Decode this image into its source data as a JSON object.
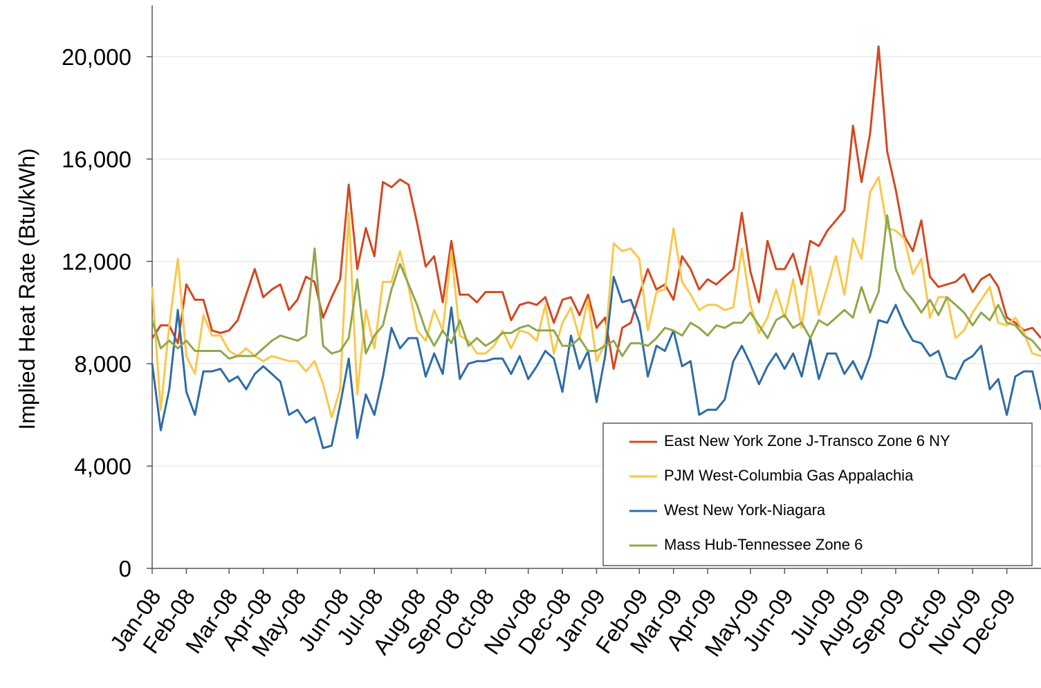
{
  "chart_data": {
    "type": "line",
    "y_label": "Implied Heat Rate (Btu/kWh)",
    "categories": [
      "Jan-08",
      null,
      null,
      null,
      "Feb-08",
      null,
      null,
      null,
      null,
      "Mar-08",
      null,
      null,
      null,
      "Apr-08",
      null,
      null,
      null,
      "May-08",
      null,
      null,
      null,
      null,
      "Jun-08",
      null,
      null,
      null,
      "Jul-08",
      null,
      null,
      null,
      null,
      "Aug-08",
      null,
      null,
      null,
      "Sep-08",
      null,
      null,
      null,
      "Oct-08",
      null,
      null,
      null,
      null,
      "Nov-08",
      null,
      null,
      null,
      "Dec-08",
      null,
      null,
      null,
      "Jan-09",
      null,
      null,
      null,
      null,
      "Feb-09",
      null,
      null,
      null,
      "Mar-09",
      null,
      null,
      null,
      "Apr-09",
      null,
      null,
      null,
      null,
      "May-09",
      null,
      null,
      null,
      "Jun-09",
      null,
      null,
      null,
      null,
      "Jul-09",
      null,
      null,
      null,
      "Aug-09",
      null,
      null,
      null,
      "Sep-09",
      null,
      null,
      null,
      null,
      "Oct-09",
      null,
      null,
      null,
      "Nov-09",
      null,
      null,
      null,
      "Dec-09",
      null,
      null,
      null,
      null
    ],
    "series": [
      {
        "name": "East New York Zone J-Transco Zone 6 NY",
        "color": "#d2481f",
        "values": [
          9000,
          9500,
          9500,
          8800,
          11100,
          10500,
          10500,
          9300,
          9200,
          9300,
          9700,
          10700,
          11700,
          10600,
          10900,
          11100,
          10100,
          10500,
          11400,
          11200,
          9800,
          10600,
          11300,
          15000,
          11700,
          13300,
          12200,
          15100,
          14900,
          15200,
          15000,
          13500,
          11800,
          12200,
          10400,
          12800,
          10700,
          10700,
          10400,
          10800,
          10800,
          10800,
          9700,
          10300,
          10400,
          10300,
          10600,
          9600,
          10500,
          10600,
          9900,
          10700,
          9400,
          9800,
          7800,
          9400,
          9600,
          10700,
          11700,
          10900,
          11100,
          10500,
          12200,
          11700,
          10900,
          11300,
          11100,
          11400,
          11700,
          13900,
          11600,
          10400,
          12800,
          11700,
          11700,
          12300,
          11100,
          12800,
          12600,
          13200,
          13600,
          14000,
          17300,
          15100,
          17000,
          20400,
          16300,
          14800,
          13000,
          12400,
          13600,
          11400,
          11000,
          11100,
          11200,
          11500,
          10800,
          11300,
          11500,
          11000,
          9800,
          9600,
          9300,
          9400,
          9000
        ]
      },
      {
        "name": "PJM West-Columbia Gas Appalachia",
        "color": "#f9c74a",
        "values": [
          11000,
          6200,
          9500,
          12100,
          8300,
          7600,
          9900,
          9100,
          9100,
          8500,
          8300,
          8600,
          8300,
          8100,
          8300,
          8200,
          8100,
          8100,
          7700,
          8100,
          7200,
          5900,
          7000,
          13900,
          6800,
          10100,
          8600,
          11200,
          11200,
          12400,
          11000,
          9300,
          8900,
          10100,
          9300,
          12400,
          9100,
          8900,
          8400,
          8400,
          8700,
          9300,
          8600,
          9300,
          9200,
          8900,
          10300,
          8400,
          9600,
          10200,
          9000,
          10500,
          8100,
          8800,
          12700,
          12400,
          12500,
          12100,
          9300,
          10800,
          10900,
          13300,
          11200,
          10700,
          10100,
          10300,
          10300,
          10100,
          10200,
          12500,
          10300,
          9200,
          9800,
          10900,
          9800,
          11300,
          9400,
          11800,
          9900,
          11000,
          12200,
          10700,
          12900,
          12100,
          14700,
          15300,
          13300,
          13200,
          12900,
          11500,
          12100,
          9800,
          10600,
          10600,
          9000,
          9300,
          10000,
          10500,
          11000,
          9600,
          9500,
          9800,
          9200,
          8400,
          8300
        ]
      },
      {
        "name": "West New York-Niagara",
        "color": "#2e6ca4",
        "values": [
          8000,
          5400,
          7000,
          10100,
          6900,
          6000,
          7700,
          7700,
          7800,
          7300,
          7500,
          7000,
          7600,
          7900,
          7600,
          7300,
          6000,
          6200,
          5700,
          5900,
          4700,
          4800,
          6400,
          8200,
          5100,
          6800,
          6000,
          7500,
          9400,
          8600,
          9000,
          9000,
          7500,
          8400,
          7600,
          10200,
          7400,
          8000,
          8100,
          8100,
          8200,
          8200,
          7600,
          8300,
          7400,
          7900,
          8500,
          8200,
          6900,
          9100,
          7800,
          8500,
          6500,
          8300,
          11400,
          10400,
          10500,
          9600,
          7500,
          8700,
          8500,
          9300,
          7900,
          8100,
          6000,
          6200,
          6200,
          6600,
          8100,
          8700,
          8000,
          7200,
          7900,
          8400,
          7800,
          8400,
          7500,
          9000,
          7400,
          8400,
          8400,
          7600,
          8100,
          7400,
          8300,
          9700,
          9600,
          10300,
          9500,
          8900,
          8800,
          8300,
          8500,
          7500,
          7400,
          8100,
          8300,
          8700,
          7000,
          7400,
          6000,
          7500,
          7700,
          7700,
          6200
        ]
      },
      {
        "name": "Mass Hub-Tennessee Zone 6",
        "color": "#8ea84a",
        "values": [
          9700,
          8600,
          8900,
          8600,
          8900,
          8500,
          8500,
          8500,
          8500,
          8200,
          8300,
          8300,
          8300,
          8600,
          8900,
          9100,
          9000,
          8900,
          9100,
          12500,
          8700,
          8400,
          8500,
          9000,
          11300,
          8400,
          9100,
          9500,
          10900,
          11900,
          11100,
          10300,
          9300,
          8700,
          9300,
          8800,
          9700,
          8700,
          9000,
          8700,
          8900,
          9200,
          9200,
          9400,
          9500,
          9300,
          9300,
          9300,
          8700,
          8700,
          9000,
          8500,
          8500,
          8700,
          8900,
          8300,
          8800,
          8800,
          8700,
          9000,
          9400,
          9300,
          9100,
          9600,
          9400,
          9100,
          9500,
          9400,
          9600,
          9600,
          10000,
          9500,
          9000,
          9700,
          9900,
          9400,
          9600,
          9000,
          9700,
          9500,
          9800,
          10100,
          9800,
          11000,
          10000,
          10800,
          13800,
          11700,
          10900,
          10500,
          10000,
          10500,
          9900,
          10600,
          10300,
          10000,
          9500,
          10000,
          9700,
          10300,
          9600,
          9500,
          9100,
          8900,
          8500
        ]
      }
    ],
    "ylim": [
      0,
      22000
    ],
    "yticks": [
      0,
      {
        "value": 4000,
        "label": "4,000"
      },
      {
        "value": 8000,
        "label": "8,000"
      },
      {
        "value": 12000,
        "label": "12,000"
      },
      {
        "value": 16000,
        "label": "16,000"
      },
      {
        "value": 20000,
        "label": "20,000"
      }
    ],
    "grid": true
  }
}
